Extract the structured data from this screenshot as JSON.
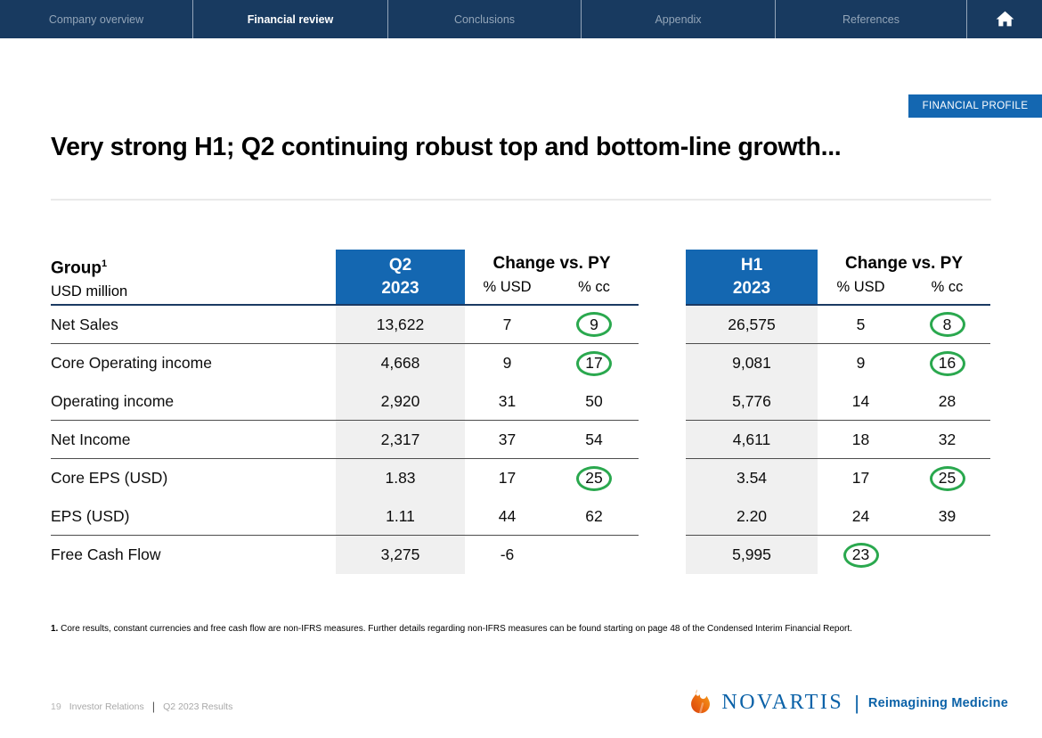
{
  "nav": {
    "tabs": [
      {
        "label": "Company overview",
        "active": false
      },
      {
        "label": "Financial review",
        "active": true
      },
      {
        "label": "Conclusions",
        "active": false
      },
      {
        "label": "Appendix",
        "active": false
      },
      {
        "label": "References",
        "active": false
      }
    ]
  },
  "badge": "FINANCIAL PROFILE",
  "title": "Very strong H1; Q2 continuing robust top and bottom-line growth...",
  "tables": {
    "row_labels_header": {
      "title": "Group",
      "superscript": "1",
      "subtitle": "USD million"
    },
    "change_header": {
      "title": "Change vs. PY",
      "col1": "% USD",
      "col2": "% cc"
    },
    "left": {
      "period_line1": "Q2",
      "period_line2": "2023",
      "rows": [
        {
          "label": "Net Sales",
          "value": "13,622",
          "usd": "7",
          "cc": "9",
          "cc_circled": true,
          "line_below": true
        },
        {
          "label": "Core Operating income",
          "value": "4,668",
          "usd": "9",
          "cc": "17",
          "cc_circled": true,
          "line_below": false
        },
        {
          "label": "Operating income",
          "value": "2,920",
          "usd": "31",
          "cc": "50",
          "line_below": true
        },
        {
          "label": "Net Income",
          "value": "2,317",
          "usd": "37",
          "cc": "54",
          "line_below": true
        },
        {
          "label": "Core EPS (USD)",
          "value": "1.83",
          "usd": "17",
          "cc": "25",
          "cc_circled": true,
          "line_below": false
        },
        {
          "label": "EPS (USD)",
          "value": "1.11",
          "usd": "44",
          "cc": "62",
          "line_below": true
        },
        {
          "label": "Free Cash Flow",
          "value": "3,275",
          "usd": "-6",
          "cc": "",
          "line_below": false
        }
      ]
    },
    "right": {
      "period_line1": "H1",
      "period_line2": "2023",
      "rows": [
        {
          "value": "26,575",
          "usd": "5",
          "cc": "8",
          "cc_circled": true,
          "line_below": true
        },
        {
          "value": "9,081",
          "usd": "9",
          "cc": "16",
          "cc_circled": true,
          "line_below": false
        },
        {
          "value": "5,776",
          "usd": "14",
          "cc": "28",
          "line_below": true
        },
        {
          "value": "4,611",
          "usd": "18",
          "cc": "32",
          "line_below": true
        },
        {
          "value": "3.54",
          "usd": "17",
          "cc": "25",
          "cc_circled": true,
          "line_below": false
        },
        {
          "value": "2.20",
          "usd": "24",
          "cc": "39",
          "line_below": true
        },
        {
          "value": "5,995",
          "usd": "23",
          "usd_circled": true,
          "cc": "",
          "line_below": false
        }
      ]
    }
  },
  "footnote": {
    "marker": "1.",
    "text": "Core results, constant currencies and free cash flow are non-IFRS measures. Further details regarding non-IFRS measures can be found starting on page 48 of the Condensed Interim Financial Report."
  },
  "footer": {
    "page": "19",
    "label1": "Investor Relations",
    "separator": "|",
    "label2": "Q2 2023 Results",
    "brand": "NOVARTIS",
    "brand_separator": "|",
    "tagline": "Reimagining Medicine"
  },
  "colors": {
    "nav_navy": "#183a60",
    "accent_blue": "#1467b1",
    "circle_green": "#2aa84e",
    "brand_blue": "#0b62a8"
  }
}
